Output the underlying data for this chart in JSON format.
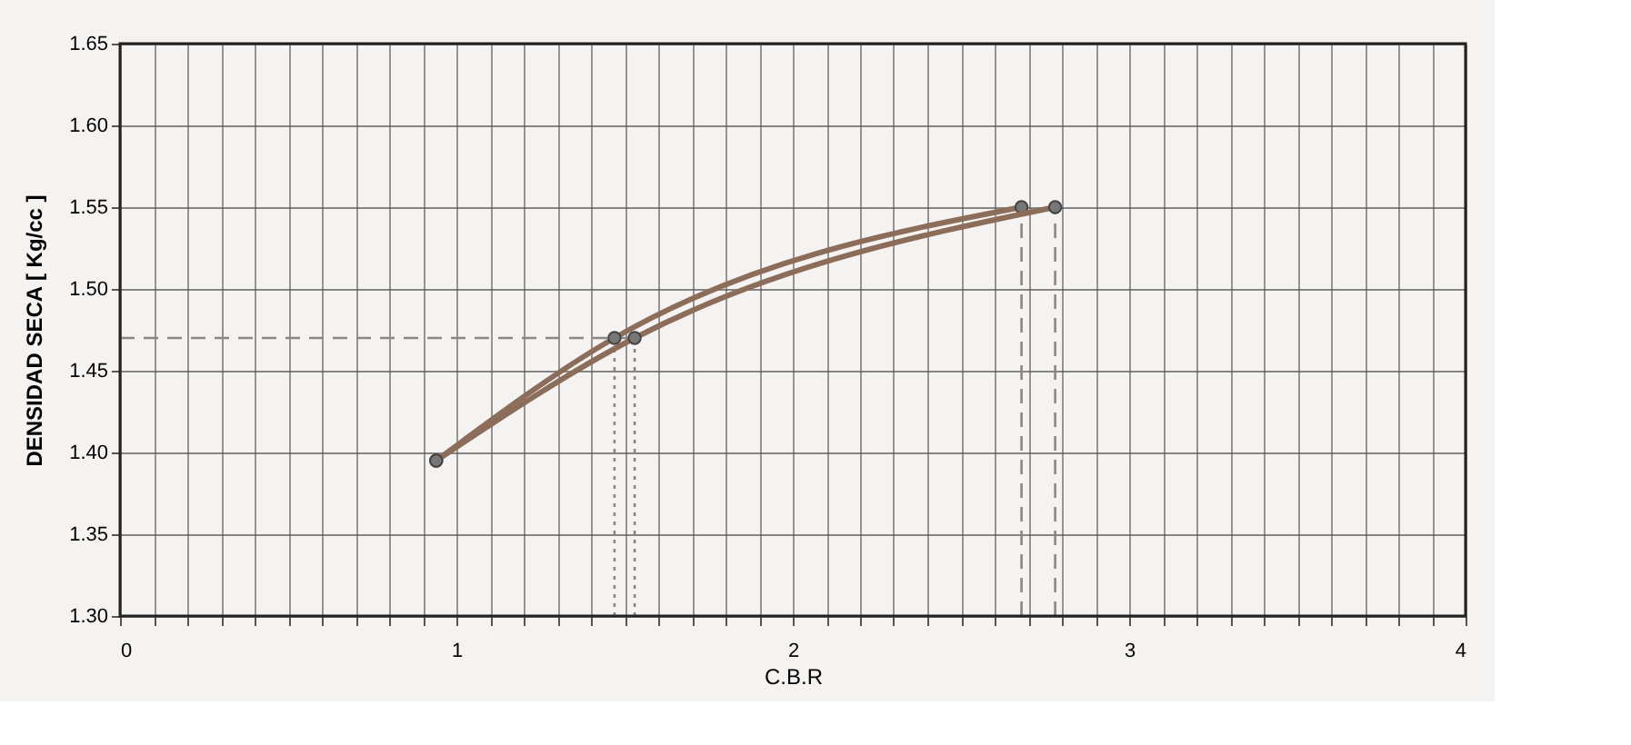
{
  "chart_data": {
    "type": "line",
    "xlabel": "C.B.R",
    "ylabel": "DENSIDAD   SECA   [ Kg/cc ]",
    "marker": "circle",
    "line_style": "solid",
    "grid": true,
    "xlim": [
      0,
      4
    ],
    "ylim": [
      1.3,
      1.65
    ],
    "xticks": [
      0,
      {
        "value": 0.1,
        "label": null
      },
      {
        "value": 0.2,
        "label": null
      },
      {
        "value": 0.3,
        "label": null
      },
      {
        "value": 0.4,
        "label": null
      },
      {
        "value": 0.5,
        "label": null
      },
      {
        "value": 0.6,
        "label": null
      },
      {
        "value": 0.7,
        "label": null
      },
      {
        "value": 0.8,
        "label": null
      },
      {
        "value": 0.9,
        "label": null
      },
      1,
      {
        "value": 1.1,
        "label": null
      },
      {
        "value": 1.2,
        "label": null
      },
      {
        "value": 1.3,
        "label": null
      },
      {
        "value": 1.4,
        "label": null
      },
      {
        "value": 1.5,
        "label": null
      },
      {
        "value": 1.6,
        "label": null
      },
      {
        "value": 1.7,
        "label": null
      },
      {
        "value": 1.8,
        "label": null
      },
      {
        "value": 1.9,
        "label": null
      },
      2,
      {
        "value": 2.1,
        "label": null
      },
      {
        "value": 2.2,
        "label": null
      },
      {
        "value": 2.3,
        "label": null
      },
      {
        "value": 2.4,
        "label": null
      },
      {
        "value": 2.5,
        "label": null
      },
      {
        "value": 2.6,
        "label": null
      },
      {
        "value": 2.7,
        "label": null
      },
      {
        "value": 2.8,
        "label": null
      },
      {
        "value": 2.9,
        "label": null
      },
      3,
      {
        "value": 3.1,
        "label": null
      },
      {
        "value": 3.2,
        "label": null
      },
      {
        "value": 3.3,
        "label": null
      },
      {
        "value": 3.4,
        "label": null
      },
      {
        "value": 3.5,
        "label": null
      },
      {
        "value": 3.6,
        "label": null
      },
      {
        "value": 3.7,
        "label": null
      },
      {
        "value": 3.8,
        "label": null
      },
      {
        "value": 3.9,
        "label": null
      },
      4
    ],
    "yticks": [
      {
        "value": 1.3,
        "label": "1.30"
      },
      1.35,
      {
        "value": 1.4,
        "label": "1.40"
      },
      1.45,
      {
        "value": 1.5,
        "label": "1.50"
      },
      1.55,
      {
        "value": 1.6,
        "label": "1.60"
      },
      1.65
    ],
    "series": [
      {
        "color": "#8c6d5a",
        "x": [
          0.94,
          1.47,
          2.68
        ],
        "values": [
          1.395,
          1.47,
          1.55
        ]
      },
      {
        "color": "#8c6d5a",
        "x": [
          0.94,
          1.53,
          2.78
        ],
        "values": [
          1.395,
          1.47,
          1.55
        ]
      }
    ],
    "ref_lines": [
      {
        "axis": "y",
        "value": 1.47,
        "line_style": "dashed",
        "color": "#888888"
      },
      {
        "axis": "x",
        "value": 1.47,
        "line_style": "dotted",
        "color": "#888888"
      },
      {
        "axis": "x",
        "value": 1.53,
        "line_style": "dotted",
        "color": "#888888"
      },
      {
        "axis": "x",
        "value": 2.68,
        "line_style": "dashed",
        "color": "#888888"
      },
      {
        "axis": "x",
        "value": 2.78,
        "line_style": "dashed",
        "color": "#888888"
      }
    ]
  }
}
